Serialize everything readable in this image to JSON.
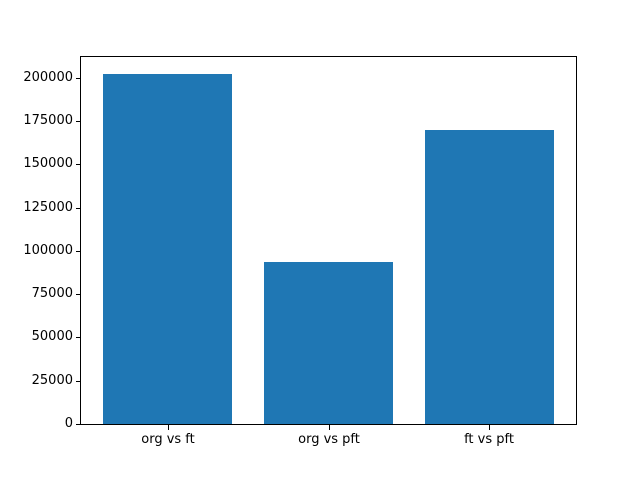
{
  "chart_data": {
    "type": "bar",
    "title": "",
    "xlabel": "",
    "ylabel": "",
    "categories": [
      "org vs ft",
      "org vs pft",
      "ft vs pft"
    ],
    "values": [
      202300,
      93400,
      170000
    ],
    "yticks": [
      0,
      25000,
      50000,
      75000,
      100000,
      125000,
      150000,
      175000,
      200000
    ],
    "ytick_labels": [
      "0",
      "25000",
      "50000",
      "75000",
      "100000",
      "125000",
      "150000",
      "175000",
      "200000"
    ],
    "ylim": [
      0,
      212000
    ],
    "xlim": [
      -0.54,
      2.54
    ],
    "bar_width": 0.8,
    "bar_color": "#1f77b4",
    "spine_color": "#000000",
    "background_color": "#ffffff",
    "grid": false,
    "legend": null
  }
}
